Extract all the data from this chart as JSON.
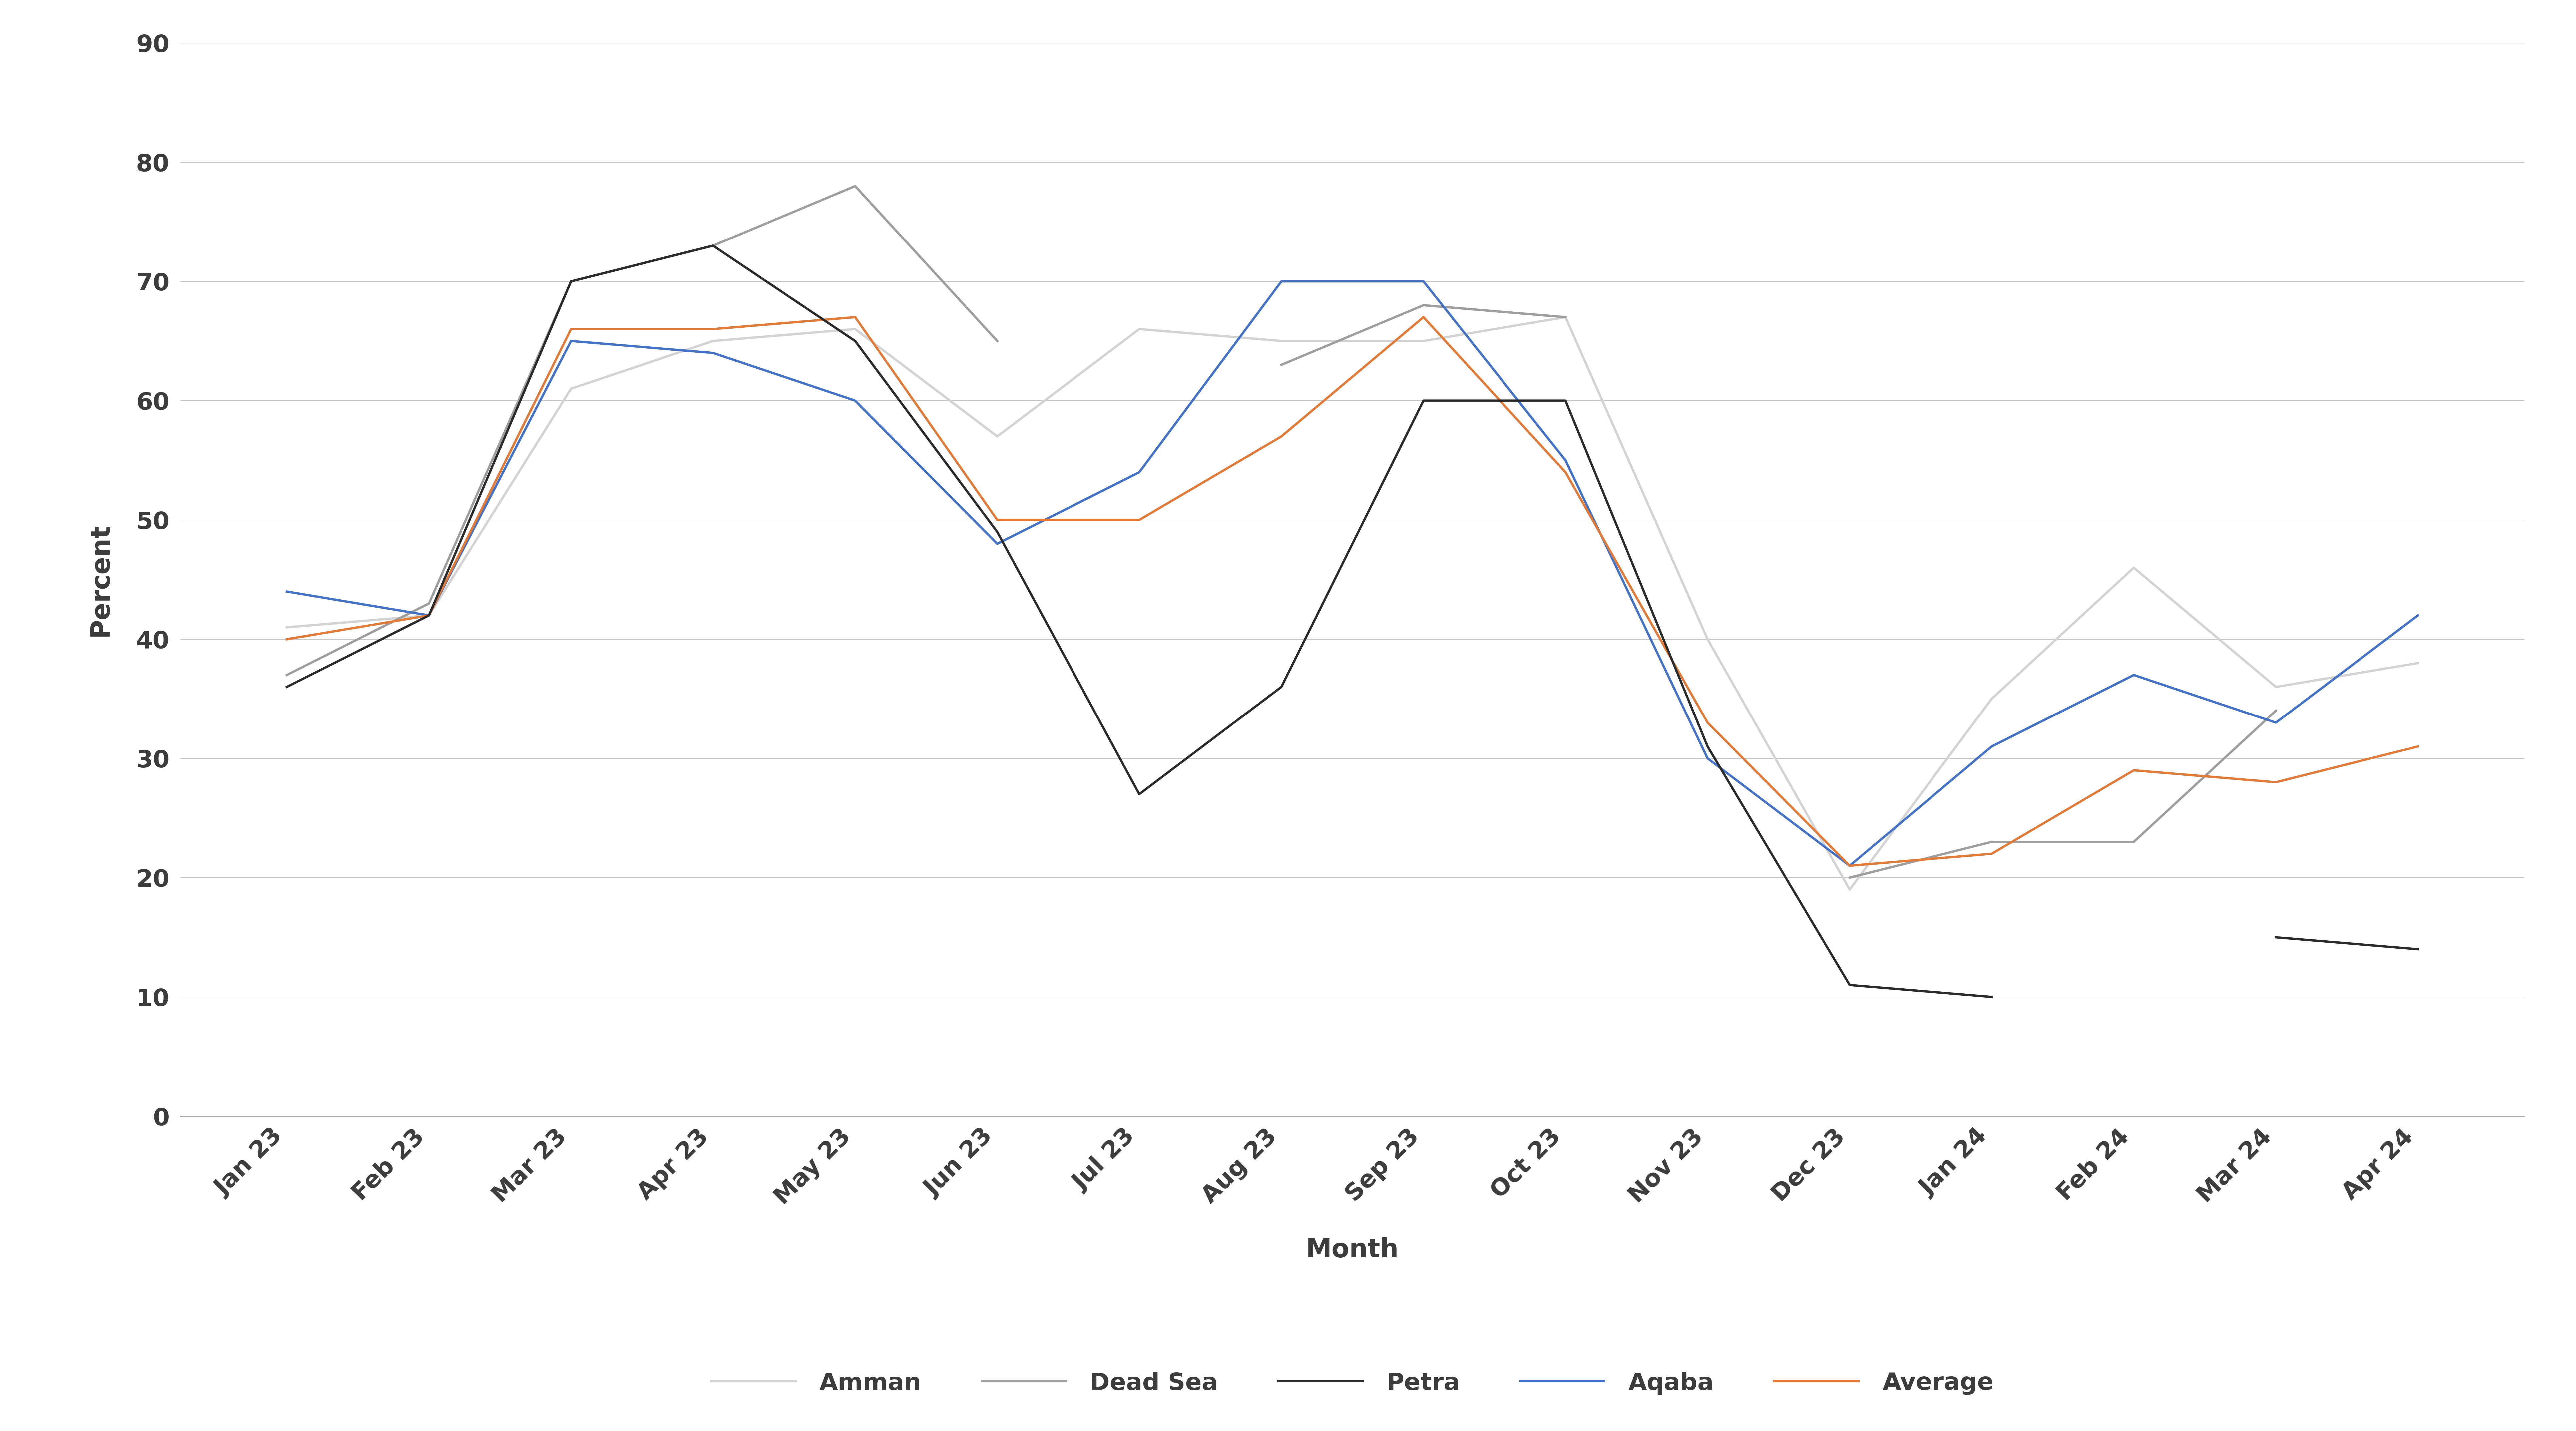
{
  "months": [
    "Jan 23",
    "Feb 23",
    "Mar 23",
    "Apr 23",
    "May 23",
    "Jun 23",
    "Jul 23",
    "Aug 23",
    "Sep 23",
    "Oct 23",
    "Nov 23",
    "Dec 23",
    "Jan 24",
    "Feb 24",
    "Mar 24",
    "Apr 24"
  ],
  "amman": [
    41,
    42,
    61,
    65,
    66,
    57,
    66,
    65,
    65,
    67,
    40,
    19,
    35,
    46,
    36,
    38
  ],
  "dead_sea": [
    37,
    43,
    70,
    73,
    78,
    65,
    null,
    63,
    68,
    67,
    null,
    20,
    23,
    23,
    34,
    null
  ],
  "petra": [
    36,
    42,
    70,
    73,
    65,
    49,
    27,
    36,
    60,
    60,
    31,
    11,
    10,
    null,
    15,
    14
  ],
  "aqaba": [
    44,
    42,
    65,
    64,
    60,
    48,
    54,
    70,
    70,
    55,
    30,
    21,
    31,
    37,
    33,
    42
  ],
  "average": [
    40,
    42,
    66,
    66,
    67,
    50,
    50,
    57,
    67,
    54,
    33,
    21,
    22,
    29,
    28,
    31
  ],
  "amman_color": "#d3d3d3",
  "dead_sea_color": "#9e9e9e",
  "petra_color": "#2b2b2b",
  "aqaba_color": "#4472c4",
  "average_color": "#e07b39",
  "tick_color": "#3c3c3c",
  "xlabel": "Month",
  "ylabel": "Percent",
  "ylim": [
    0,
    90
  ],
  "yticks": [
    0,
    10,
    20,
    30,
    40,
    50,
    60,
    70,
    80,
    90
  ],
  "legend_labels": [
    "Amman",
    "Dead Sea",
    "Petra",
    "Aqaba",
    "Average"
  ],
  "line_width": 5.0,
  "background_color": "#ffffff",
  "grid_color": "#c8c8c8"
}
